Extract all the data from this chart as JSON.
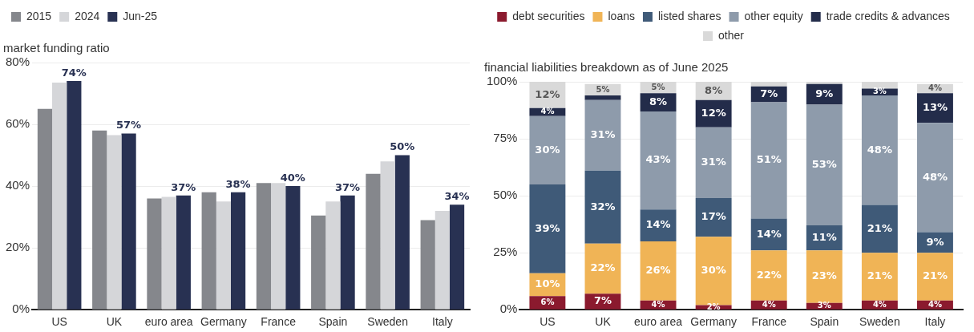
{
  "chart_data": [
    {
      "type": "bar",
      "title": "market funding ratio",
      "categories": [
        "US",
        "UK",
        "euro area",
        "Germany",
        "France",
        "Spain",
        "Sweden",
        "Italy"
      ],
      "series": [
        {
          "name": "2015",
          "color": "#85878c",
          "values": [
            65,
            58,
            36,
            38,
            41,
            30.5,
            44,
            29
          ]
        },
        {
          "name": "2024",
          "color": "#d5d6d9",
          "values": [
            73.5,
            56.5,
            36.5,
            35,
            41,
            35,
            48,
            32
          ]
        },
        {
          "name": "Jun-25",
          "color": "#283152",
          "values": [
            74,
            57,
            37,
            38,
            40,
            37,
            50,
            34
          ],
          "value_labels": [
            "74%",
            "57%",
            "37%",
            "38%",
            "40%",
            "37%",
            "50%",
            "34%"
          ]
        }
      ],
      "ylim": [
        0,
        80
      ],
      "yticks": [
        {
          "value": 0,
          "label": "0%"
        },
        {
          "value": 20,
          "label": "20%"
        },
        {
          "value": 40,
          "label": "40%"
        },
        {
          "value": 60,
          "label": "60%"
        },
        {
          "value": 80,
          "label": "80%"
        }
      ],
      "grid": "y",
      "legend": "top left"
    },
    {
      "type": "bar",
      "title": "financial liabilities breakdown as of June 2025",
      "categories": [
        "US",
        "UK",
        "euro area",
        "Germany",
        "France",
        "Spain",
        "Sweden",
        "Italy"
      ],
      "stacked": true,
      "series": [
        {
          "name": "debt securities",
          "color": "#8b1a2e",
          "values": [
            6,
            7,
            4,
            2,
            4,
            3,
            4,
            4
          ],
          "value_labels": [
            "6%",
            "7%",
            "4%",
            "2%",
            "4%",
            "3%",
            "4%",
            "4%"
          ]
        },
        {
          "name": "loans",
          "color": "#f0b456",
          "values": [
            10,
            22,
            26,
            30,
            22,
            23,
            21,
            21
          ],
          "value_labels": [
            "10%",
            "22%",
            "26%",
            "30%",
            "22%",
            "23%",
            "21%",
            "21%"
          ]
        },
        {
          "name": "listed shares",
          "color": "#3f5a78",
          "values": [
            39,
            32,
            14,
            17,
            14,
            11,
            21,
            9
          ],
          "value_labels": [
            "39%",
            "32%",
            "14%",
            "17%",
            "14%",
            "11%",
            "21%",
            "9%"
          ]
        },
        {
          "name": "other equity",
          "color": "#8e9bab",
          "values": [
            30,
            31,
            43,
            31,
            51,
            53,
            48,
            48
          ],
          "value_labels": [
            "30%",
            "31%",
            "43%",
            "31%",
            "51%",
            "53%",
            "48%",
            "48%"
          ]
        },
        {
          "name": "trade credits & advances",
          "color": "#232c4a",
          "values": [
            3.5,
            2,
            8,
            12,
            7,
            9,
            3,
            13
          ],
          "value_labels": [
            "4%",
            null,
            "8%",
            "12%",
            "7%",
            "9%",
            "3%",
            "13%"
          ]
        },
        {
          "name": "other",
          "color": "#d9d9d9",
          "values": [
            11.5,
            5,
            5,
            8,
            2,
            1,
            3,
            4
          ],
          "value_labels": [
            "12%",
            "5%",
            "5%",
            "8%",
            null,
            null,
            null,
            "4%"
          ]
        }
      ],
      "ylim": [
        0,
        100
      ],
      "yticks": [
        {
          "value": 0,
          "label": "0%"
        },
        {
          "value": 25,
          "label": "25%"
        },
        {
          "value": 50,
          "label": "50%"
        },
        {
          "value": 75,
          "label": "75%"
        },
        {
          "value": 100,
          "label": "100%"
        }
      ],
      "grid": "y",
      "legend": "top"
    }
  ]
}
